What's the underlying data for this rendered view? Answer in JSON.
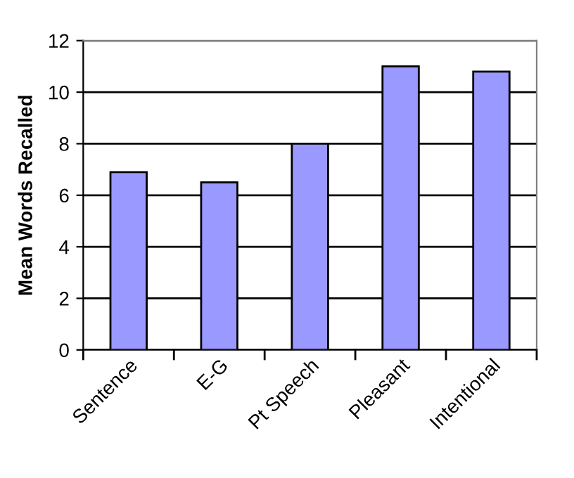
{
  "chart_data": {
    "type": "bar",
    "ylabel": "Mean Words Recalled",
    "categories": [
      "Sentence",
      "E-G",
      "Pt Speech",
      "Pleasant",
      "Intentional"
    ],
    "values": [
      6.9,
      6.5,
      8.0,
      11.0,
      10.8
    ],
    "color": "#9999ff",
    "ylim": [
      0,
      12
    ],
    "yticks": [
      0,
      2,
      4,
      6,
      8,
      10,
      12
    ],
    "grid": "y"
  }
}
